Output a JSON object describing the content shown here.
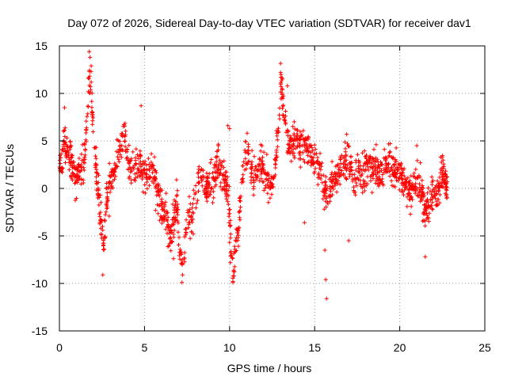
{
  "chart_data": {
    "type": "scatter",
    "title": "Day 072 of 2026, Sidereal Day-to-day VTEC variation (SDTVAR) for receiver dav1",
    "xlabel": "GPS time / hours",
    "ylabel": "SDTVAR / TECUs",
    "xlim": [
      0,
      25
    ],
    "ylim": [
      -15,
      15
    ],
    "xticks": [
      0,
      5,
      10,
      15,
      20,
      25
    ],
    "yticks": [
      -15,
      -10,
      -5,
      0,
      5,
      10,
      15
    ],
    "xtick_labels": [
      "0",
      "5",
      "10",
      "15",
      "20",
      "25"
    ],
    "ytick_labels": [
      "-15",
      "-10",
      "-5",
      "0",
      "5",
      "10",
      "15"
    ],
    "grid": true,
    "marker": "+",
    "color": "#ff0000",
    "series": [
      {
        "name": "SDTVAR",
        "profile": [
          [
            0.0,
            2
          ],
          [
            0.3,
            5
          ],
          [
            0.5,
            4
          ],
          [
            0.8,
            2
          ],
          [
            1.0,
            1.5
          ],
          [
            1.3,
            2
          ],
          [
            1.5,
            3.5
          ],
          [
            1.7,
            10
          ],
          [
            1.85,
            12
          ],
          [
            2.0,
            5
          ],
          [
            2.2,
            1
          ],
          [
            2.4,
            -3
          ],
          [
            2.6,
            -6
          ],
          [
            2.8,
            -1
          ],
          [
            3.0,
            1
          ],
          [
            3.3,
            2
          ],
          [
            3.5,
            4
          ],
          [
            3.8,
            6
          ],
          [
            4.0,
            3
          ],
          [
            4.3,
            2
          ],
          [
            4.6,
            2.5
          ],
          [
            4.9,
            2
          ],
          [
            5.2,
            1
          ],
          [
            5.5,
            2.5
          ],
          [
            5.7,
            0
          ],
          [
            6.0,
            -2
          ],
          [
            6.3,
            -3
          ],
          [
            6.6,
            -5
          ],
          [
            6.9,
            -1
          ],
          [
            7.1,
            -7
          ],
          [
            7.3,
            -8.5
          ],
          [
            7.5,
            -2
          ],
          [
            7.8,
            -3
          ],
          [
            8.1,
            0
          ],
          [
            8.3,
            1.5
          ],
          [
            8.6,
            0
          ],
          [
            9.0,
            1
          ],
          [
            9.3,
            2.5
          ],
          [
            9.6,
            1.5
          ],
          [
            9.9,
            0
          ],
          [
            10.1,
            -7
          ],
          [
            10.2,
            -9.5
          ],
          [
            10.3,
            -7
          ],
          [
            10.5,
            -5
          ],
          [
            10.7,
            0
          ],
          [
            10.9,
            3.5
          ],
          [
            11.1,
            4
          ],
          [
            11.4,
            1
          ],
          [
            11.7,
            2.5
          ],
          [
            12.0,
            2
          ],
          [
            12.3,
            0.5
          ],
          [
            12.6,
            1
          ],
          [
            12.9,
            6.5
          ],
          [
            13.0,
            11
          ],
          [
            13.2,
            8
          ],
          [
            13.5,
            4
          ],
          [
            13.8,
            5
          ],
          [
            14.0,
            5
          ],
          [
            14.2,
            4
          ],
          [
            14.5,
            4.5
          ],
          [
            15.0,
            3
          ],
          [
            15.3,
            2
          ],
          [
            15.6,
            0
          ],
          [
            15.8,
            -1
          ],
          [
            16.0,
            0.5
          ],
          [
            16.3,
            1
          ],
          [
            16.6,
            2.5
          ],
          [
            17.0,
            3
          ],
          [
            17.3,
            0.5
          ],
          [
            17.6,
            2
          ],
          [
            17.9,
            1
          ],
          [
            18.2,
            3
          ],
          [
            18.5,
            2
          ],
          [
            18.8,
            1.5
          ],
          [
            19.1,
            2
          ],
          [
            19.4,
            3
          ],
          [
            19.7,
            2
          ],
          [
            20.0,
            2
          ],
          [
            20.3,
            0
          ],
          [
            20.6,
            -0.5
          ],
          [
            20.9,
            0.5
          ],
          [
            21.2,
            0
          ],
          [
            21.5,
            -2
          ],
          [
            21.8,
            -1
          ],
          [
            22.0,
            -1
          ],
          [
            22.3,
            0
          ],
          [
            22.5,
            2
          ],
          [
            22.8,
            0
          ]
        ],
        "spread": 1.6,
        "outliers": [
          [
            1.75,
            14.4
          ],
          [
            1.8,
            13.8
          ],
          [
            13.0,
            12.2
          ],
          [
            13.1,
            11.5
          ],
          [
            13.4,
            10.8
          ],
          [
            4.8,
            8.7
          ],
          [
            0.3,
            8.5
          ],
          [
            10.2,
            -9.8
          ],
          [
            7.2,
            -9.9
          ],
          [
            2.55,
            -9.1
          ],
          [
            15.7,
            -11.6
          ],
          [
            15.65,
            -9.6
          ],
          [
            15.6,
            -6.5
          ],
          [
            14.4,
            -3.6
          ],
          [
            17.0,
            -5.5
          ],
          [
            21.5,
            -7.2
          ],
          [
            22.4,
            3.3
          ],
          [
            21.0,
            4.5
          ],
          [
            9.9,
            6.6
          ],
          [
            10.0,
            6.3
          ]
        ],
        "n_points": 1800,
        "seed": 72
      }
    ]
  }
}
